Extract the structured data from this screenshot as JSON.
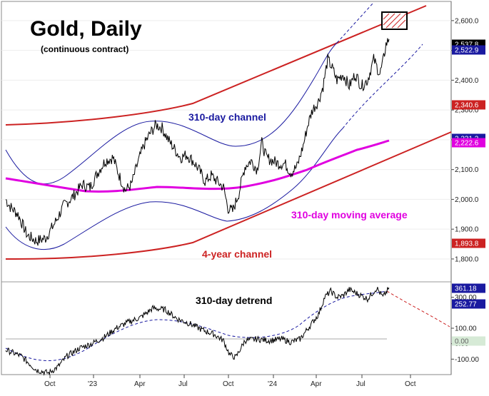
{
  "chart_data": [
    {
      "type": "line",
      "panel": "price",
      "title": "Gold, Daily",
      "subtitle": "(continuous contract)",
      "ylim": [
        1740,
        2650
      ],
      "y_ticks": [
        1800,
        1900,
        2000,
        2100,
        2200,
        2300,
        2400,
        2500,
        2600
      ],
      "y_tick_labels": [
        "1,800.0",
        "1,900.0",
        "2,000.0",
        "2,100.0",
        "2,200.0",
        "2,300.0",
        "2,400.0",
        "2,500.0",
        "2,600.0"
      ],
      "x_tick_labels": [
        "Oct",
        "'23",
        "Apr",
        "Jul",
        "Oct",
        "'24",
        "Apr",
        "Jul",
        "Oct"
      ],
      "series": [
        {
          "name": "Gold price",
          "color": "#000000",
          "anchors": [
            [
              0,
              2000
            ],
            [
              3,
              1975
            ],
            [
              8,
              1950
            ],
            [
              14,
              1880
            ],
            [
              20,
              1860
            ],
            [
              26,
              1870
            ],
            [
              32,
              1920
            ],
            [
              38,
              1980
            ],
            [
              44,
              2010
            ],
            [
              50,
              2050
            ],
            [
              55,
              2040
            ],
            [
              60,
              2090
            ],
            [
              65,
              2130
            ],
            [
              70,
              2140
            ],
            [
              74,
              2080
            ],
            [
              78,
              2030
            ],
            [
              82,
              2050
            ],
            [
              86,
              2120
            ],
            [
              90,
              2180
            ],
            [
              94,
              2220
            ],
            [
              98,
              2250
            ],
            [
              102,
              2240
            ],
            [
              106,
              2200
            ],
            [
              110,
              2170
            ],
            [
              114,
              2140
            ],
            [
              118,
              2150
            ],
            [
              122,
              2130
            ],
            [
              126,
              2100
            ],
            [
              130,
              2060
            ],
            [
              134,
              2080
            ],
            [
              138,
              2060
            ],
            [
              142,
              2040
            ],
            [
              145,
              1970
            ],
            [
              148,
              1960
            ],
            [
              152,
              2020
            ],
            [
              156,
              2110
            ],
            [
              160,
              2130
            ],
            [
              164,
              2100
            ],
            [
              167,
              2190
            ],
            [
              170,
              2140
            ],
            [
              174,
              2130
            ],
            [
              178,
              2120
            ],
            [
              182,
              2120
            ],
            [
              186,
              2090
            ],
            [
              190,
              2110
            ],
            [
              194,
              2180
            ],
            [
              197,
              2250
            ],
            [
              200,
              2300
            ],
            [
              204,
              2330
            ],
            [
              207,
              2380
            ],
            [
              210,
              2470
            ],
            [
              213,
              2440
            ],
            [
              216,
              2400
            ],
            [
              220,
              2420
            ],
            [
              224,
              2380
            ],
            [
              228,
              2420
            ],
            [
              232,
              2380
            ],
            [
              236,
              2400
            ],
            [
              240,
              2470
            ],
            [
              244,
              2420
            ],
            [
              246,
              2460
            ],
            [
              248,
              2520
            ],
            [
              250,
              2537.8
            ]
          ]
        },
        {
          "name": "310-day moving average",
          "color": "#e000e0",
          "label": "310-day moving average"
        },
        {
          "name": "310-day channel",
          "color": "#1a1aa0",
          "label": "310-day channel"
        },
        {
          "name": "4-year channel",
          "color": "#cc2222",
          "label": "4-year channel"
        }
      ],
      "badges": [
        {
          "label": "2,537.8",
          "bg": "#000000",
          "fg": "#ffffff"
        },
        {
          "label": "2,522.9",
          "bg": "#1a1aa0",
          "fg": "#ffffff"
        },
        {
          "label": "2,340.6",
          "bg": "#cc2222",
          "fg": "#ffffff"
        },
        {
          "label": "2,231.2",
          "bg": "#1a1aa0",
          "fg": "#ffffff"
        },
        {
          "label": "2,222.6",
          "bg": "#e000e0",
          "fg": "#ffffff"
        },
        {
          "label": "1,893.8",
          "bg": "#cc2222",
          "fg": "#ffffff"
        }
      ]
    },
    {
      "type": "line",
      "panel": "detrend",
      "title": "310-day detrend",
      "ylim": [
        -200,
        400
      ],
      "y_ticks": [
        -100,
        0,
        100,
        300
      ],
      "y_tick_labels": [
        "-100.00",
        "0.00",
        "100.00",
        "300.00"
      ],
      "series": [
        {
          "name": "310-day detrend",
          "color": "#000000",
          "anchors": [
            [
              0,
              -40
            ],
            [
              10,
              -80
            ],
            [
              20,
              -170
            ],
            [
              28,
              -190
            ],
            [
              34,
              -150
            ],
            [
              40,
              -80
            ],
            [
              48,
              -30
            ],
            [
              56,
              0
            ],
            [
              64,
              40
            ],
            [
              72,
              100
            ],
            [
              80,
              140
            ],
            [
              88,
              170
            ],
            [
              96,
              230
            ],
            [
              104,
              220
            ],
            [
              112,
              160
            ],
            [
              120,
              130
            ],
            [
              128,
              90
            ],
            [
              136,
              60
            ],
            [
              142,
              20
            ],
            [
              146,
              -70
            ],
            [
              150,
              -90
            ],
            [
              156,
              20
            ],
            [
              164,
              30
            ],
            [
              172,
              20
            ],
            [
              180,
              30
            ],
            [
              186,
              10
            ],
            [
              192,
              30
            ],
            [
              198,
              110
            ],
            [
              204,
              190
            ],
            [
              208,
              300
            ],
            [
              212,
              340
            ],
            [
              216,
              300
            ],
            [
              220,
              310
            ],
            [
              224,
              350
            ],
            [
              230,
              320
            ],
            [
              236,
              290
            ],
            [
              242,
              360
            ],
            [
              246,
              300
            ],
            [
              250,
              361.18
            ]
          ]
        },
        {
          "name": "detrend trend",
          "color": "#1a1aa0"
        },
        {
          "name": "detrend projection",
          "color": "#cc2222"
        }
      ],
      "badges": [
        {
          "label": "361.18",
          "bg": "#1a1aa0",
          "fg": "#ffffff"
        },
        {
          "label": "252.77",
          "bg": "#1a1aa0",
          "fg": "#ffffff"
        },
        {
          "label": "0.00",
          "bg": "#d6ead6",
          "fg": "#666666"
        }
      ]
    }
  ]
}
